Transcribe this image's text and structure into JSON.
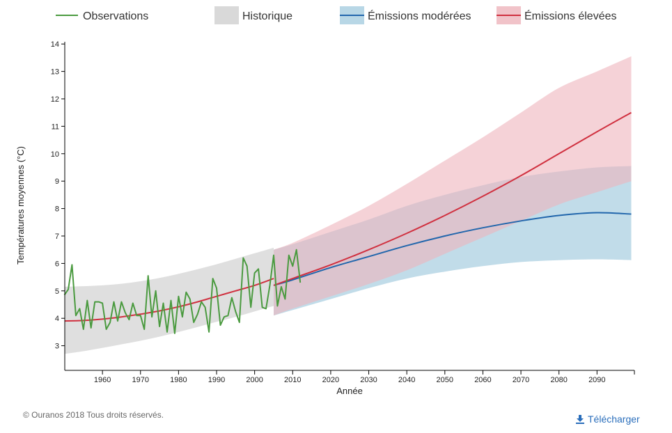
{
  "legend": {
    "observations": "Observations",
    "historique": "Historique",
    "moderees": "Émissions modérées",
    "elevees": "Émissions élevées"
  },
  "colors": {
    "observations": "#4a9a3f",
    "historique_band": "#d9d9d9",
    "moderees_line": "#2166ac",
    "moderees_band": "#a6cde0",
    "elevees_line": "#d0303f",
    "elevees_band": "#eeb4bc"
  },
  "footer": {
    "credit": "© Ouranos 2018 Tous droits réservés.",
    "download_label": "Télécharger",
    "download_icon": "download-icon"
  },
  "chart_data": {
    "type": "line",
    "xlabel": "Année",
    "ylabel": "Températures moyennes (°C)",
    "xlim": [
      1950,
      2100
    ],
    "ylim": [
      2,
      14
    ],
    "x_ticks": [
      1960,
      1970,
      1980,
      1990,
      2000,
      2010,
      2020,
      2030,
      2040,
      2050,
      2060,
      2070,
      2080,
      2090
    ],
    "y_ticks": [
      3,
      4,
      5,
      6,
      7,
      8,
      9,
      10,
      11,
      12,
      13,
      14
    ],
    "grid": false,
    "legend_position": "top",
    "observations": {
      "name": "Observations",
      "x": [
        1950,
        1951,
        1952,
        1953,
        1954,
        1955,
        1956,
        1957,
        1958,
        1959,
        1960,
        1961,
        1962,
        1963,
        1964,
        1965,
        1966,
        1967,
        1968,
        1969,
        1970,
        1971,
        1972,
        1973,
        1974,
        1975,
        1976,
        1977,
        1978,
        1979,
        1980,
        1981,
        1982,
        1983,
        1984,
        1985,
        1986,
        1987,
        1988,
        1989,
        1990,
        1991,
        1992,
        1993,
        1994,
        1995,
        1996,
        1997,
        1998,
        1999,
        2000,
        2001,
        2002,
        2003,
        2004,
        2005,
        2006,
        2007,
        2008,
        2009,
        2010,
        2011,
        2012
      ],
      "y": [
        4.85,
        5.05,
        5.95,
        4.1,
        4.35,
        3.6,
        4.65,
        3.65,
        4.6,
        4.6,
        4.55,
        3.6,
        3.85,
        4.6,
        3.9,
        4.6,
        4.2,
        3.95,
        4.55,
        4.1,
        4.1,
        3.6,
        5.55,
        4.05,
        5.0,
        3.7,
        4.55,
        3.5,
        4.65,
        3.45,
        4.8,
        4.05,
        4.95,
        4.7,
        3.85,
        4.15,
        4.6,
        4.4,
        3.5,
        5.45,
        5.1,
        3.75,
        4.05,
        4.1,
        4.75,
        4.25,
        3.85,
        6.2,
        5.9,
        4.4,
        5.65,
        5.8,
        4.4,
        4.35,
        5.2,
        6.3,
        4.45,
        5.15,
        4.7,
        6.3,
        5.9,
        6.5,
        5.3
      ]
    },
    "historique": {
      "name": "Historique",
      "x": [
        1950,
        1955,
        1960,
        1965,
        1970,
        1975,
        1980,
        1985,
        1990,
        1995,
        2000,
        2005
      ],
      "median": [
        3.9,
        3.92,
        3.97,
        4.05,
        4.15,
        4.27,
        4.42,
        4.6,
        4.8,
        5.0,
        5.2,
        5.45
      ],
      "lower": [
        2.7,
        2.8,
        2.92,
        3.05,
        3.18,
        3.33,
        3.5,
        3.68,
        3.87,
        4.05,
        4.25,
        4.45
      ],
      "upper": [
        5.15,
        5.17,
        5.2,
        5.26,
        5.35,
        5.47,
        5.62,
        5.79,
        5.97,
        6.17,
        6.37,
        6.57
      ]
    },
    "moderees": {
      "name": "Émissions modérées",
      "x": [
        2005,
        2010,
        2020,
        2030,
        2040,
        2050,
        2060,
        2070,
        2080,
        2090,
        2099
      ],
      "median": [
        5.2,
        5.4,
        5.85,
        6.25,
        6.65,
        7.0,
        7.3,
        7.55,
        7.75,
        7.85,
        7.8
      ],
      "lower": [
        4.1,
        4.3,
        4.7,
        5.1,
        5.45,
        5.7,
        5.9,
        6.05,
        6.12,
        6.15,
        6.12
      ],
      "upper": [
        6.5,
        6.7,
        7.15,
        7.6,
        8.1,
        8.5,
        8.85,
        9.15,
        9.35,
        9.5,
        9.55
      ]
    },
    "elevees": {
      "name": "Émissions élevées",
      "x": [
        2005,
        2010,
        2020,
        2030,
        2040,
        2050,
        2060,
        2070,
        2080,
        2090,
        2099
      ],
      "median": [
        5.2,
        5.45,
        5.95,
        6.5,
        7.1,
        7.75,
        8.45,
        9.2,
        10.0,
        10.8,
        11.5
      ],
      "lower": [
        4.1,
        4.35,
        4.8,
        5.25,
        5.75,
        6.35,
        6.95,
        7.55,
        8.15,
        8.6,
        9.0
      ],
      "upper": [
        6.5,
        6.75,
        7.4,
        8.1,
        8.9,
        9.75,
        10.6,
        11.5,
        12.4,
        13.0,
        13.55
      ]
    }
  }
}
